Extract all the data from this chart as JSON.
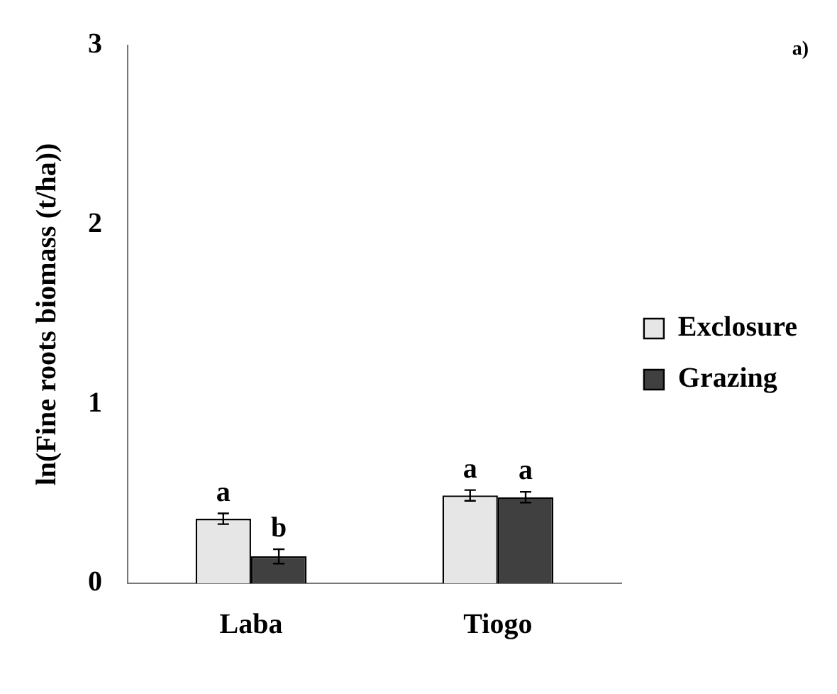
{
  "chart_data": {
    "type": "bar",
    "ylabel": "ln(Fine roots biomass (t/ha))",
    "categories": [
      "Laba",
      "Tiogo"
    ],
    "series": [
      {
        "name": "Exclosure",
        "color": "#e6e6e6",
        "values": [
          0.36,
          0.49
        ],
        "errors": [
          0.03,
          0.03
        ]
      },
      {
        "name": "Grazing",
        "color": "#404040",
        "values": [
          0.15,
          0.48
        ],
        "errors": [
          0.04,
          0.03
        ]
      }
    ],
    "ylim": [
      0,
      3
    ],
    "yticks": [
      0,
      1,
      2,
      3
    ],
    "grid": false,
    "legend": "right",
    "annotations": [
      "a)",
      "a",
      "b",
      "a",
      "a"
    ]
  }
}
